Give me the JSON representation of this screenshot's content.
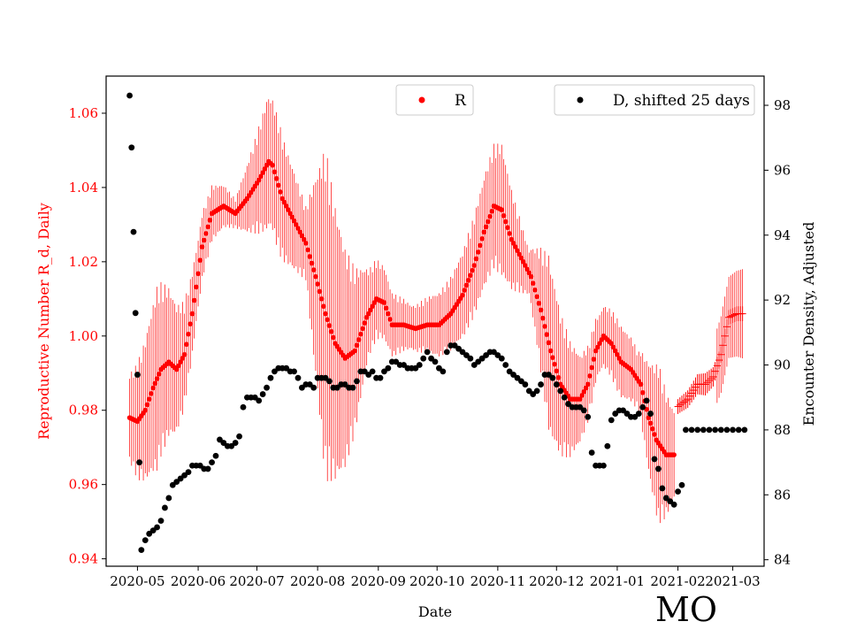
{
  "chart_data": {
    "type": "scatter",
    "state_label": "MO",
    "xlabel": "Date",
    "x_ticks": [
      "2020-05",
      "2020-06",
      "2020-07",
      "2020-08",
      "2020-09",
      "2020-10",
      "2020-11",
      "2020-12",
      "2021-01",
      "2021-02",
      "2021-03"
    ],
    "x_tick_days": [
      0,
      31,
      61,
      92,
      123,
      153,
      184,
      214,
      245,
      276,
      304
    ],
    "xlim_days": [
      -16,
      320
    ],
    "left_axis": {
      "label": "Reproductive Number R_d, Daily",
      "color": "#ff0000",
      "ylim": [
        0.938,
        1.07
      ],
      "ticks": [
        "0.94",
        "0.96",
        "0.98",
        "1.00",
        "1.02",
        "1.04",
        "1.06"
      ]
    },
    "right_axis": {
      "label": "Encounter Density, Adjusted",
      "color": "#000000",
      "ylim": [
        83.8,
        98.9
      ],
      "ticks": [
        "84",
        "86",
        "88",
        "90",
        "92",
        "94",
        "96",
        "98"
      ]
    },
    "legend_r": "R",
    "legend_d": "D, shifted 25 days",
    "series": [
      {
        "name": "R",
        "color": "#ff0000",
        "axis": "left",
        "points": [
          [
            -4,
            0.978
          ],
          [
            0,
            0.977
          ],
          [
            4,
            0.98
          ],
          [
            8,
            0.986
          ],
          [
            12,
            0.991
          ],
          [
            16,
            0.993
          ],
          [
            20,
            0.991
          ],
          [
            24,
            0.995
          ],
          [
            28,
            1.006
          ],
          [
            33,
            1.024
          ],
          [
            38,
            1.033
          ],
          [
            44,
            1.035
          ],
          [
            50,
            1.033
          ],
          [
            56,
            1.037
          ],
          [
            62,
            1.042
          ],
          [
            67,
            1.047
          ],
          [
            69,
            1.046
          ],
          [
            74,
            1.037
          ],
          [
            80,
            1.031
          ],
          [
            86,
            1.025
          ],
          [
            91,
            1.016
          ],
          [
            96,
            1.006
          ],
          [
            101,
            0.998
          ],
          [
            106,
            0.994
          ],
          [
            111,
            0.996
          ],
          [
            117,
            1.005
          ],
          [
            122,
            1.01
          ],
          [
            126,
            1.009
          ],
          [
            130,
            1.003
          ],
          [
            136,
            1.003
          ],
          [
            142,
            1.002
          ],
          [
            148,
            1.003
          ],
          [
            154,
            1.003
          ],
          [
            160,
            1.006
          ],
          [
            166,
            1.011
          ],
          [
            172,
            1.019
          ],
          [
            177,
            1.028
          ],
          [
            182,
            1.035
          ],
          [
            186,
            1.034
          ],
          [
            191,
            1.026
          ],
          [
            196,
            1.021
          ],
          [
            201,
            1.016
          ],
          [
            206,
            1.007
          ],
          [
            211,
            0.996
          ],
          [
            216,
            0.987
          ],
          [
            221,
            0.983
          ],
          [
            226,
            0.983
          ],
          [
            230,
            0.987
          ],
          [
            234,
            0.996
          ],
          [
            238,
            1.0
          ],
          [
            242,
            0.998
          ],
          [
            247,
            0.993
          ],
          [
            252,
            0.991
          ],
          [
            257,
            0.987
          ],
          [
            261,
            0.978
          ],
          [
            265,
            0.972
          ],
          [
            270,
            0.968
          ],
          [
            274,
            0.968
          ]
        ],
        "error_band": [
          [
            -4,
            0.012
          ],
          [
            10,
            0.025
          ],
          [
            30,
            0.01
          ],
          [
            50,
            0.004
          ],
          [
            66,
            0.018
          ],
          [
            72,
            0.018
          ],
          [
            86,
            0.01
          ],
          [
            96,
            0.045
          ],
          [
            106,
            0.03
          ],
          [
            118,
            0.012
          ],
          [
            140,
            0.006
          ],
          [
            160,
            0.01
          ],
          [
            186,
            0.018
          ],
          [
            200,
            0.006
          ],
          [
            210,
            0.024
          ],
          [
            226,
            0.012
          ],
          [
            236,
            0.008
          ],
          [
            246,
            0.01
          ],
          [
            256,
            0.008
          ],
          [
            266,
            0.022
          ],
          [
            274,
            0.012
          ]
        ],
        "tail_points": [
          [
            276,
            0.981
          ],
          [
            281,
            0.983
          ],
          [
            286,
            0.987
          ],
          [
            290,
            0.987
          ],
          [
            294,
            0.989
          ],
          [
            298,
            0.995
          ],
          [
            302,
            1.005
          ],
          [
            306,
            1.006
          ],
          [
            309,
            1.006
          ]
        ],
        "tail_error": [
          [
            276,
            0.002
          ],
          [
            290,
            0.003
          ],
          [
            300,
            0.002
          ],
          [
            309,
            0.002
          ]
        ],
        "tail_wide_error": [
          [
            296,
            0.01
          ],
          [
            309,
            0.012
          ]
        ]
      },
      {
        "name": "D, shifted 25 days",
        "color": "#000000",
        "axis": "right",
        "points": [
          [
            -4,
            98.3
          ],
          [
            -3,
            96.7
          ],
          [
            -2,
            94.1
          ],
          [
            -1,
            91.6
          ],
          [
            0,
            89.7
          ],
          [
            1,
            87.0
          ],
          [
            2,
            84.3
          ],
          [
            4,
            84.6
          ],
          [
            6,
            84.8
          ],
          [
            8,
            84.9
          ],
          [
            10,
            85.0
          ],
          [
            12,
            85.2
          ],
          [
            14,
            85.6
          ],
          [
            16,
            85.9
          ],
          [
            18,
            86.3
          ],
          [
            20,
            86.4
          ],
          [
            22,
            86.5
          ],
          [
            24,
            86.6
          ],
          [
            26,
            86.7
          ],
          [
            28,
            86.9
          ],
          [
            30,
            86.9
          ],
          [
            32,
            86.9
          ],
          [
            34,
            86.8
          ],
          [
            36,
            86.8
          ],
          [
            38,
            87.0
          ],
          [
            40,
            87.2
          ],
          [
            42,
            87.7
          ],
          [
            44,
            87.6
          ],
          [
            46,
            87.5
          ],
          [
            48,
            87.5
          ],
          [
            50,
            87.6
          ],
          [
            52,
            87.8
          ],
          [
            54,
            88.7
          ],
          [
            56,
            89.0
          ],
          [
            58,
            89.0
          ],
          [
            60,
            89.0
          ],
          [
            62,
            88.9
          ],
          [
            64,
            89.1
          ],
          [
            66,
            89.3
          ],
          [
            68,
            89.6
          ],
          [
            70,
            89.8
          ],
          [
            72,
            89.9
          ],
          [
            74,
            89.9
          ],
          [
            76,
            89.9
          ],
          [
            78,
            89.8
          ],
          [
            80,
            89.8
          ],
          [
            82,
            89.6
          ],
          [
            84,
            89.3
          ],
          [
            86,
            89.4
          ],
          [
            88,
            89.4
          ],
          [
            90,
            89.3
          ],
          [
            92,
            89.6
          ],
          [
            94,
            89.6
          ],
          [
            96,
            89.6
          ],
          [
            98,
            89.5
          ],
          [
            100,
            89.3
          ],
          [
            102,
            89.3
          ],
          [
            104,
            89.4
          ],
          [
            106,
            89.4
          ],
          [
            108,
            89.3
          ],
          [
            110,
            89.3
          ],
          [
            112,
            89.5
          ],
          [
            114,
            89.8
          ],
          [
            116,
            89.8
          ],
          [
            118,
            89.7
          ],
          [
            120,
            89.8
          ],
          [
            122,
            89.6
          ],
          [
            124,
            89.6
          ],
          [
            126,
            89.8
          ],
          [
            128,
            89.9
          ],
          [
            130,
            90.1
          ],
          [
            132,
            90.1
          ],
          [
            134,
            90.0
          ],
          [
            136,
            90.0
          ],
          [
            138,
            89.9
          ],
          [
            140,
            89.9
          ],
          [
            142,
            89.9
          ],
          [
            144,
            90.0
          ],
          [
            146,
            90.2
          ],
          [
            148,
            90.4
          ],
          [
            150,
            90.2
          ],
          [
            152,
            90.1
          ],
          [
            154,
            89.9
          ],
          [
            156,
            89.8
          ],
          [
            158,
            90.4
          ],
          [
            160,
            90.6
          ],
          [
            162,
            90.6
          ],
          [
            164,
            90.5
          ],
          [
            166,
            90.4
          ],
          [
            168,
            90.3
          ],
          [
            170,
            90.2
          ],
          [
            172,
            90.0
          ],
          [
            174,
            90.1
          ],
          [
            176,
            90.2
          ],
          [
            178,
            90.3
          ],
          [
            180,
            90.4
          ],
          [
            182,
            90.4
          ],
          [
            184,
            90.3
          ],
          [
            186,
            90.2
          ],
          [
            188,
            90.0
          ],
          [
            190,
            89.8
          ],
          [
            192,
            89.7
          ],
          [
            194,
            89.6
          ],
          [
            196,
            89.5
          ],
          [
            198,
            89.4
          ],
          [
            200,
            89.2
          ],
          [
            202,
            89.1
          ],
          [
            204,
            89.2
          ],
          [
            206,
            89.4
          ],
          [
            208,
            89.7
          ],
          [
            210,
            89.7
          ],
          [
            212,
            89.6
          ],
          [
            214,
            89.4
          ],
          [
            216,
            89.2
          ],
          [
            218,
            89.0
          ],
          [
            220,
            88.8
          ],
          [
            222,
            88.7
          ],
          [
            224,
            88.7
          ],
          [
            226,
            88.7
          ],
          [
            228,
            88.6
          ],
          [
            230,
            88.4
          ],
          [
            232,
            87.3
          ],
          [
            234,
            86.9
          ],
          [
            236,
            86.9
          ],
          [
            238,
            86.9
          ],
          [
            240,
            87.5
          ],
          [
            242,
            88.3
          ],
          [
            244,
            88.5
          ],
          [
            246,
            88.6
          ],
          [
            248,
            88.6
          ],
          [
            250,
            88.5
          ],
          [
            252,
            88.4
          ],
          [
            254,
            88.4
          ],
          [
            256,
            88.5
          ],
          [
            258,
            88.7
          ],
          [
            260,
            88.9
          ],
          [
            262,
            88.5
          ],
          [
            264,
            87.1
          ],
          [
            266,
            86.8
          ],
          [
            268,
            86.2
          ],
          [
            270,
            85.9
          ],
          [
            272,
            85.8
          ],
          [
            274,
            85.7
          ],
          [
            276,
            86.1
          ],
          [
            278,
            86.3
          ],
          [
            280,
            88.0
          ],
          [
            283,
            88.0
          ],
          [
            286,
            88.0
          ],
          [
            289,
            88.0
          ],
          [
            292,
            88.0
          ],
          [
            295,
            88.0
          ],
          [
            298,
            88.0
          ],
          [
            301,
            88.0
          ],
          [
            304,
            88.0
          ],
          [
            307,
            88.0
          ],
          [
            310,
            88.0
          ]
        ]
      }
    ]
  }
}
